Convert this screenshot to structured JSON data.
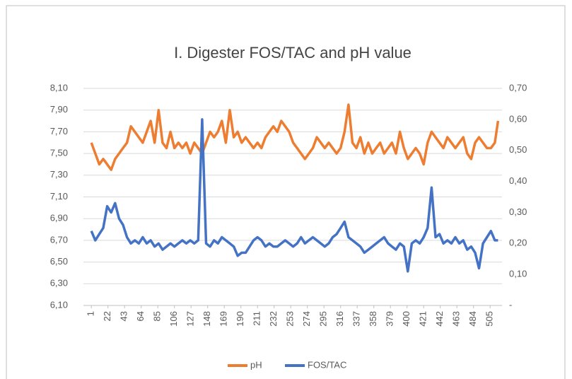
{
  "chart_data": {
    "type": "line",
    "title": "I. Digester  FOS/TAC and pH value",
    "x": [
      1,
      6,
      11,
      16,
      21,
      26,
      31,
      36,
      41,
      46,
      51,
      56,
      61,
      66,
      71,
      76,
      81,
      86,
      91,
      96,
      101,
      106,
      111,
      116,
      121,
      126,
      131,
      136,
      141,
      146,
      151,
      156,
      161,
      166,
      171,
      176,
      181,
      186,
      191,
      196,
      201,
      206,
      211,
      216,
      221,
      226,
      231,
      236,
      241,
      246,
      251,
      256,
      261,
      266,
      271,
      276,
      281,
      286,
      291,
      296,
      301,
      306,
      311,
      316,
      321,
      326,
      331,
      336,
      341,
      346,
      351,
      356,
      361,
      366,
      371,
      376,
      381,
      386,
      391,
      396,
      401,
      406,
      411,
      416,
      421,
      426,
      431,
      436,
      441,
      446,
      451,
      456,
      461,
      466,
      471,
      476,
      481,
      486,
      491,
      496,
      501,
      506,
      511,
      515
    ],
    "series": [
      {
        "name": "pH",
        "color": "#ED7D31",
        "values": [
          7.6,
          7.5,
          7.4,
          7.45,
          7.4,
          7.35,
          7.45,
          7.5,
          7.55,
          7.6,
          7.75,
          7.7,
          7.65,
          7.6,
          7.7,
          7.8,
          7.6,
          7.9,
          7.6,
          7.55,
          7.7,
          7.55,
          7.6,
          7.55,
          7.6,
          7.5,
          7.6,
          7.55,
          7.5,
          7.6,
          7.7,
          7.65,
          7.7,
          7.8,
          7.6,
          7.9,
          7.65,
          7.7,
          7.6,
          7.65,
          7.6,
          7.55,
          7.6,
          7.55,
          7.65,
          7.7,
          7.75,
          7.7,
          7.8,
          7.75,
          7.7,
          7.6,
          7.55,
          7.5,
          7.45,
          7.5,
          7.55,
          7.65,
          7.6,
          7.55,
          7.6,
          7.55,
          7.5,
          7.55,
          7.7,
          7.95,
          7.6,
          7.55,
          7.65,
          7.5,
          7.6,
          7.5,
          7.55,
          7.6,
          7.5,
          7.55,
          7.6,
          7.5,
          7.7,
          7.55,
          7.45,
          7.5,
          7.55,
          7.5,
          7.4,
          7.6,
          7.7,
          7.65,
          7.6,
          7.55,
          7.65,
          7.6,
          7.55,
          7.6,
          7.65,
          7.5,
          7.45,
          7.6,
          7.65,
          7.6,
          7.55,
          7.55,
          7.6,
          7.8
        ]
      },
      {
        "name": "FOS/TAC",
        "color": "#4472C4",
        "axis": "y2",
        "values": [
          0.24,
          0.21,
          0.23,
          0.25,
          0.32,
          0.3,
          0.33,
          0.28,
          0.26,
          0.22,
          0.2,
          0.21,
          0.2,
          0.22,
          0.2,
          0.21,
          0.19,
          0.2,
          0.18,
          0.19,
          0.2,
          0.19,
          0.2,
          0.21,
          0.2,
          0.21,
          0.2,
          0.21,
          0.6,
          0.2,
          0.19,
          0.21,
          0.2,
          0.22,
          0.21,
          0.2,
          0.19,
          0.16,
          0.17,
          0.17,
          0.19,
          0.21,
          0.22,
          0.21,
          0.19,
          0.2,
          0.19,
          0.19,
          0.2,
          0.21,
          0.2,
          0.19,
          0.2,
          0.22,
          0.2,
          0.21,
          0.22,
          0.21,
          0.2,
          0.19,
          0.2,
          0.22,
          0.23,
          0.25,
          0.27,
          0.22,
          0.21,
          0.2,
          0.19,
          0.17,
          0.18,
          0.19,
          0.2,
          0.21,
          0.22,
          0.2,
          0.19,
          0.18,
          0.2,
          0.19,
          0.11,
          0.2,
          0.21,
          0.2,
          0.22,
          0.25,
          0.38,
          0.22,
          0.23,
          0.2,
          0.21,
          0.2,
          0.22,
          0.2,
          0.21,
          0.18,
          0.19,
          0.17,
          0.12,
          0.2,
          0.22,
          0.24,
          0.21,
          0.21
        ]
      }
    ],
    "xlim": [
      -9,
      520
    ],
    "xticks": [
      1,
      22,
      43,
      64,
      85,
      106,
      127,
      148,
      169,
      190,
      211,
      232,
      253,
      274,
      295,
      316,
      337,
      358,
      379,
      400,
      421,
      442,
      463,
      484,
      505
    ],
    "ylim": [
      6.1,
      8.1
    ],
    "yticks": [
      {
        "value": 6.1,
        "label": "6,10"
      },
      {
        "value": 6.3,
        "label": "6,30"
      },
      {
        "value": 6.5,
        "label": "6,50"
      },
      {
        "value": 6.7,
        "label": "6,70"
      },
      {
        "value": 6.9,
        "label": "6,90"
      },
      {
        "value": 7.1,
        "label": "7,10"
      },
      {
        "value": 7.3,
        "label": "7,30"
      },
      {
        "value": 7.5,
        "label": "7,50"
      },
      {
        "value": 7.7,
        "label": "7,70"
      },
      {
        "value": 7.9,
        "label": "7,90"
      },
      {
        "value": 8.1,
        "label": "8,10"
      }
    ],
    "y2lim": [
      0,
      0.7
    ],
    "y2ticks": [
      {
        "value": 0,
        "label": "-"
      },
      {
        "value": 0.1,
        "label": "0,10"
      },
      {
        "value": 0.2,
        "label": "0,20"
      },
      {
        "value": 0.3,
        "label": "0,30"
      },
      {
        "value": 0.4,
        "label": "0,40"
      },
      {
        "value": 0.5,
        "label": "0,50"
      },
      {
        "value": 0.6,
        "label": "0,60"
      },
      {
        "value": 0.7,
        "label": "0,70"
      }
    ],
    "grid": true,
    "legend": "bottom"
  }
}
